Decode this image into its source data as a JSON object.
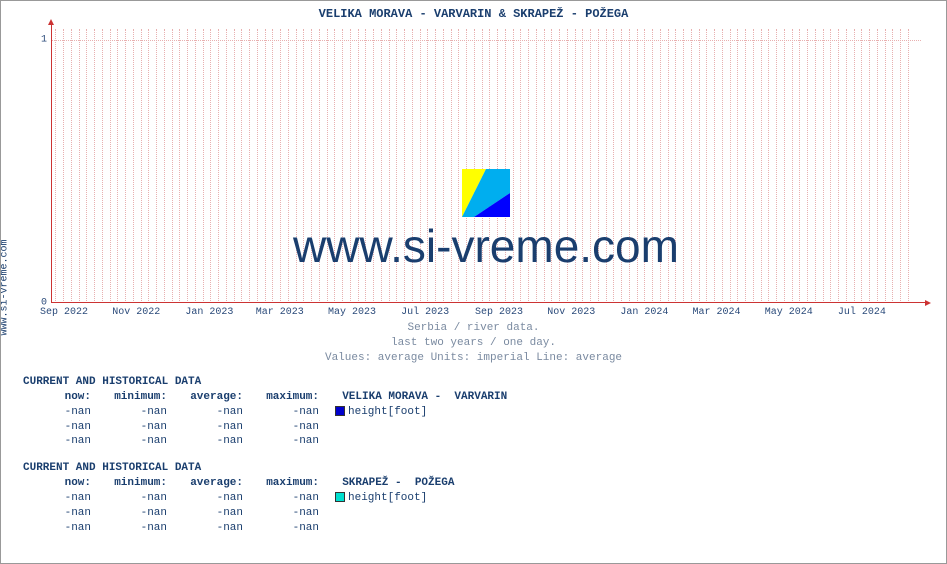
{
  "chart": {
    "title": "VELIKA MORAVA -  VARVARIN &  SKRAPEŽ -  POŽEGA",
    "ylabel_side": "www.si-vreme.com",
    "watermark_text": "www.si-vreme.com",
    "subtitle_lines": [
      "Serbia / river data.",
      "last two years / one day.",
      "Values: average  Units: imperial  Line: average"
    ],
    "y_ticks": [
      {
        "label": "0",
        "pos_pct": 100
      },
      {
        "label": "1",
        "pos_pct": 4
      }
    ],
    "x_ticks": [
      {
        "label": "Sep 2022",
        "pos_pct": 1.5
      },
      {
        "label": "Nov 2022",
        "pos_pct": 9.8
      },
      {
        "label": "Jan 2023",
        "pos_pct": 18.2
      },
      {
        "label": "Mar 2023",
        "pos_pct": 26.3
      },
      {
        "label": "May 2023",
        "pos_pct": 34.6
      },
      {
        "label": "Jul 2023",
        "pos_pct": 43.0
      },
      {
        "label": "Sep 2023",
        "pos_pct": 51.5
      },
      {
        "label": "Nov 2023",
        "pos_pct": 59.8
      },
      {
        "label": "Jan 2024",
        "pos_pct": 68.2
      },
      {
        "label": "Mar 2024",
        "pos_pct": 76.5
      },
      {
        "label": "May 2024",
        "pos_pct": 84.8
      },
      {
        "label": "Jul 2024",
        "pos_pct": 93.2
      }
    ],
    "grid_color": "#e8b0b0",
    "axis_color": "#cc3333",
    "background_color": "#ffffff",
    "title_color": "#1a3e6e",
    "logo_colors": {
      "left": "#ffff00",
      "right_top": "#00aeef",
      "right_bottom": "#0000ff"
    }
  },
  "tables": [
    {
      "header": "CURRENT AND HISTORICAL DATA",
      "columns": {
        "now": "now:",
        "minimum": "minimum:",
        "average": "average:",
        "maximum": "maximum:"
      },
      "series_label": "VELIKA MORAVA -  VARVARIN",
      "swatch_color": "#0000cc",
      "metric_label": "height[foot]",
      "rows": [
        {
          "now": "-nan",
          "min": "-nan",
          "avg": "-nan",
          "max": "-nan",
          "show_swatch": true
        },
        {
          "now": "-nan",
          "min": "-nan",
          "avg": "-nan",
          "max": "-nan",
          "show_swatch": false
        },
        {
          "now": "-nan",
          "min": "-nan",
          "avg": "-nan",
          "max": "-nan",
          "show_swatch": false
        }
      ]
    },
    {
      "header": "CURRENT AND HISTORICAL DATA",
      "columns": {
        "now": "now:",
        "minimum": "minimum:",
        "average": "average:",
        "maximum": "maximum:"
      },
      "series_label": "SKRAPEŽ -  POŽEGA",
      "swatch_color": "#00e0d0",
      "metric_label": "height[foot]",
      "rows": [
        {
          "now": "-nan",
          "min": "-nan",
          "avg": "-nan",
          "max": "-nan",
          "show_swatch": true
        },
        {
          "now": "-nan",
          "min": "-nan",
          "avg": "-nan",
          "max": "-nan",
          "show_swatch": false
        },
        {
          "now": "-nan",
          "min": "-nan",
          "avg": "-nan",
          "max": "-nan",
          "show_swatch": false
        }
      ]
    }
  ]
}
